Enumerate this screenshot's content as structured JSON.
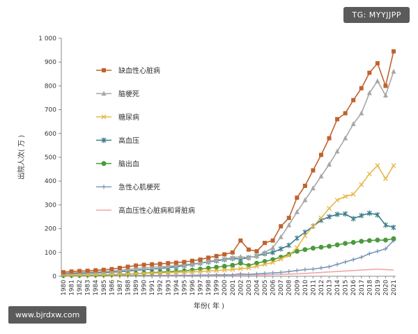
{
  "watermarks": {
    "tag": "TG: MYYJJPP",
    "url": "www.bjrdxw.com"
  },
  "chart_data": {
    "type": "line",
    "title": "",
    "xlabel": "年份( 年 )",
    "ylabel": "出院人次( 万 )",
    "ylim": [
      0,
      1000
    ],
    "yticks": [
      0,
      100,
      200,
      300,
      400,
      500,
      600,
      700,
      800,
      900,
      1000
    ],
    "ytick_labels": [
      "0",
      "100",
      "200",
      "300",
      "400",
      "500",
      "600",
      "700",
      "800",
      "900",
      "1 000"
    ],
    "x": [
      "1980",
      "1981",
      "1982",
      "1983",
      "1984",
      "1985",
      "1986",
      "1987",
      "1988",
      "1989",
      "1990",
      "1991",
      "1992",
      "1993",
      "1994",
      "1995",
      "1996",
      "1997",
      "1998",
      "1999",
      "2000",
      "2001",
      "2002",
      "2003",
      "2004",
      "2005",
      "2006",
      "2007",
      "2008",
      "2009",
      "2010",
      "2011",
      "2012",
      "2013",
      "2014",
      "2015",
      "2016",
      "2017",
      "2018",
      "2019",
      "2020",
      "2021"
    ],
    "grid": false,
    "legend_position": "upper-left",
    "series": [
      {
        "name": "缺血性心脏病",
        "color": "#c0622d",
        "marker": "square",
        "values": [
          17,
          20,
          22,
          23,
          25,
          27,
          30,
          35,
          40,
          45,
          48,
          50,
          52,
          55,
          57,
          60,
          65,
          70,
          78,
          85,
          92,
          100,
          150,
          112,
          105,
          140,
          150,
          210,
          245,
          330,
          380,
          445,
          510,
          580,
          660,
          685,
          740,
          790,
          855,
          895,
          800,
          945
        ]
      },
      {
        "name": "脑梗死",
        "color": "#a6a6a6",
        "marker": "triangle",
        "values": [
          12,
          14,
          16,
          17,
          18,
          20,
          22,
          25,
          28,
          32,
          35,
          38,
          40,
          42,
          45,
          48,
          52,
          56,
          62,
          68,
          72,
          78,
          82,
          78,
          86,
          100,
          120,
          165,
          215,
          270,
          320,
          370,
          420,
          470,
          525,
          580,
          640,
          685,
          770,
          820,
          760,
          860
        ]
      },
      {
        "name": "糖尿病",
        "color": "#e6b84a",
        "marker": "cross",
        "values": [
          5,
          5,
          6,
          6,
          7,
          7,
          8,
          9,
          10,
          11,
          12,
          13,
          14,
          15,
          16,
          17,
          18,
          20,
          22,
          24,
          26,
          28,
          32,
          35,
          42,
          50,
          58,
          72,
          88,
          120,
          170,
          210,
          245,
          285,
          320,
          335,
          345,
          385,
          430,
          465,
          410,
          465
        ]
      },
      {
        "name": "高血压",
        "color": "#3c7d8c",
        "marker": "asterisk",
        "values": [
          10,
          11,
          12,
          13,
          14,
          15,
          17,
          19,
          22,
          25,
          28,
          30,
          33,
          36,
          40,
          45,
          50,
          55,
          60,
          65,
          70,
          75,
          72,
          78,
          85,
          95,
          100,
          115,
          130,
          160,
          185,
          210,
          235,
          250,
          260,
          262,
          242,
          255,
          265,
          258,
          215,
          205
        ]
      },
      {
        "name": "脑出血",
        "color": "#4a9a3c",
        "marker": "circle",
        "values": [
          3,
          4,
          4,
          5,
          5,
          6,
          7,
          8,
          9,
          11,
          13,
          15,
          17,
          19,
          21,
          23,
          26,
          30,
          34,
          38,
          42,
          46,
          55,
          45,
          55,
          62,
          70,
          80,
          92,
          105,
          112,
          118,
          122,
          126,
          132,
          138,
          142,
          147,
          150,
          152,
          152,
          158
        ]
      },
      {
        "name": "急性心肌梗死",
        "color": "#7d98b8",
        "marker": "plus",
        "values": [
          2,
          2,
          2,
          2,
          2,
          2,
          3,
          3,
          3,
          3,
          3,
          3,
          3,
          4,
          4,
          4,
          4,
          5,
          5,
          6,
          6,
          6,
          10,
          8,
          10,
          12,
          14,
          16,
          20,
          24,
          28,
          30,
          35,
          40,
          50,
          60,
          70,
          80,
          95,
          105,
          115,
          150
        ]
      },
      {
        "name": "高血压性心脏病和肾脏病",
        "color": "#f0a7a3",
        "marker": "none",
        "values": [
          1,
          1,
          1,
          1,
          1,
          1,
          1,
          1,
          2,
          2,
          2,
          2,
          2,
          2,
          2,
          2,
          3,
          3,
          3,
          3,
          4,
          4,
          5,
          5,
          6,
          6,
          7,
          8,
          9,
          10,
          12,
          14,
          16,
          18,
          20,
          22,
          24,
          26,
          28,
          30,
          28,
          26
        ]
      }
    ]
  }
}
